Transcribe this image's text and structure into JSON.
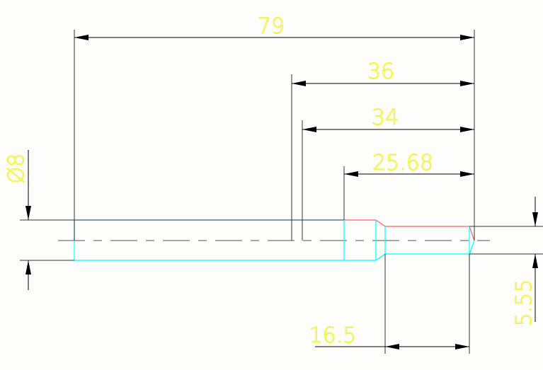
{
  "drawing": {
    "dimensions": {
      "overall_length": "79",
      "length_36": "36",
      "length_34": "34",
      "length_25_68": "25.68",
      "diameter": "Ø8",
      "small_diameter": "5.55",
      "small_section_length": "16.5"
    },
    "colors": {
      "background": "#fdfefc",
      "dimension_lines": "#000000",
      "outline": "#00ffff",
      "highlight_edge": "#ff6060",
      "dimension_text": "#f2f23a",
      "centerline": "#8a8a8a"
    }
  }
}
